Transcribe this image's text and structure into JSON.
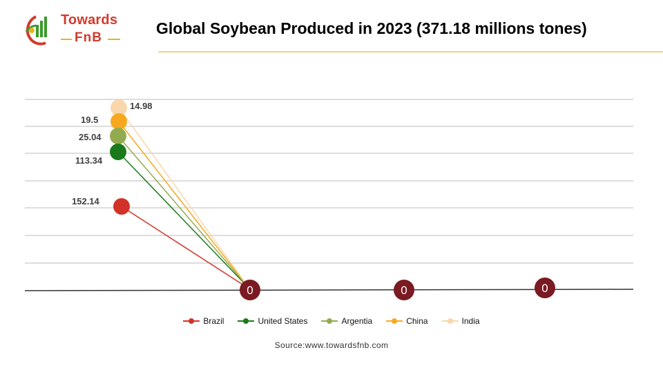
{
  "brand": {
    "line1": "Towards",
    "line2": "FnB"
  },
  "title": "Global Soybean Produced in 2023 (371.18 millions tones)",
  "source": "Source:www.towardsfnb.com",
  "colors": {
    "Brazil": "#d33228",
    "United States": "#1a7a1a",
    "Argentia": "#93ab4f",
    "China": "#f7a81f",
    "India": "#f9d7aa",
    "zero_marker": "#7a1a22",
    "grid": "#bbbbbb",
    "brand_red": "#d23a2c",
    "brand_gold": "#e3b326"
  },
  "chart_data": {
    "type": "line",
    "title": "Global Soybean Produced in 2023 (371.18 millions tones)",
    "x": [
      "",
      "",
      "",
      ""
    ],
    "series": [
      {
        "name": "Brazil",
        "values": [
          152.14,
          0,
          0,
          0
        ]
      },
      {
        "name": "United States",
        "values": [
          113.34,
          0,
          0,
          0
        ]
      },
      {
        "name": "Argentia",
        "values": [
          25.04,
          0,
          0,
          0
        ]
      },
      {
        "name": "China",
        "values": [
          19.5,
          0,
          0,
          0
        ]
      },
      {
        "name": "India",
        "values": [
          14.98,
          0,
          0,
          0
        ]
      }
    ],
    "data_labels": [
      "152.14",
      "113.34",
      "25.04",
      "19.5",
      "14.98"
    ],
    "zero_labels": [
      "0",
      "0",
      "0"
    ],
    "grid": true,
    "legend_position": "bottom"
  }
}
